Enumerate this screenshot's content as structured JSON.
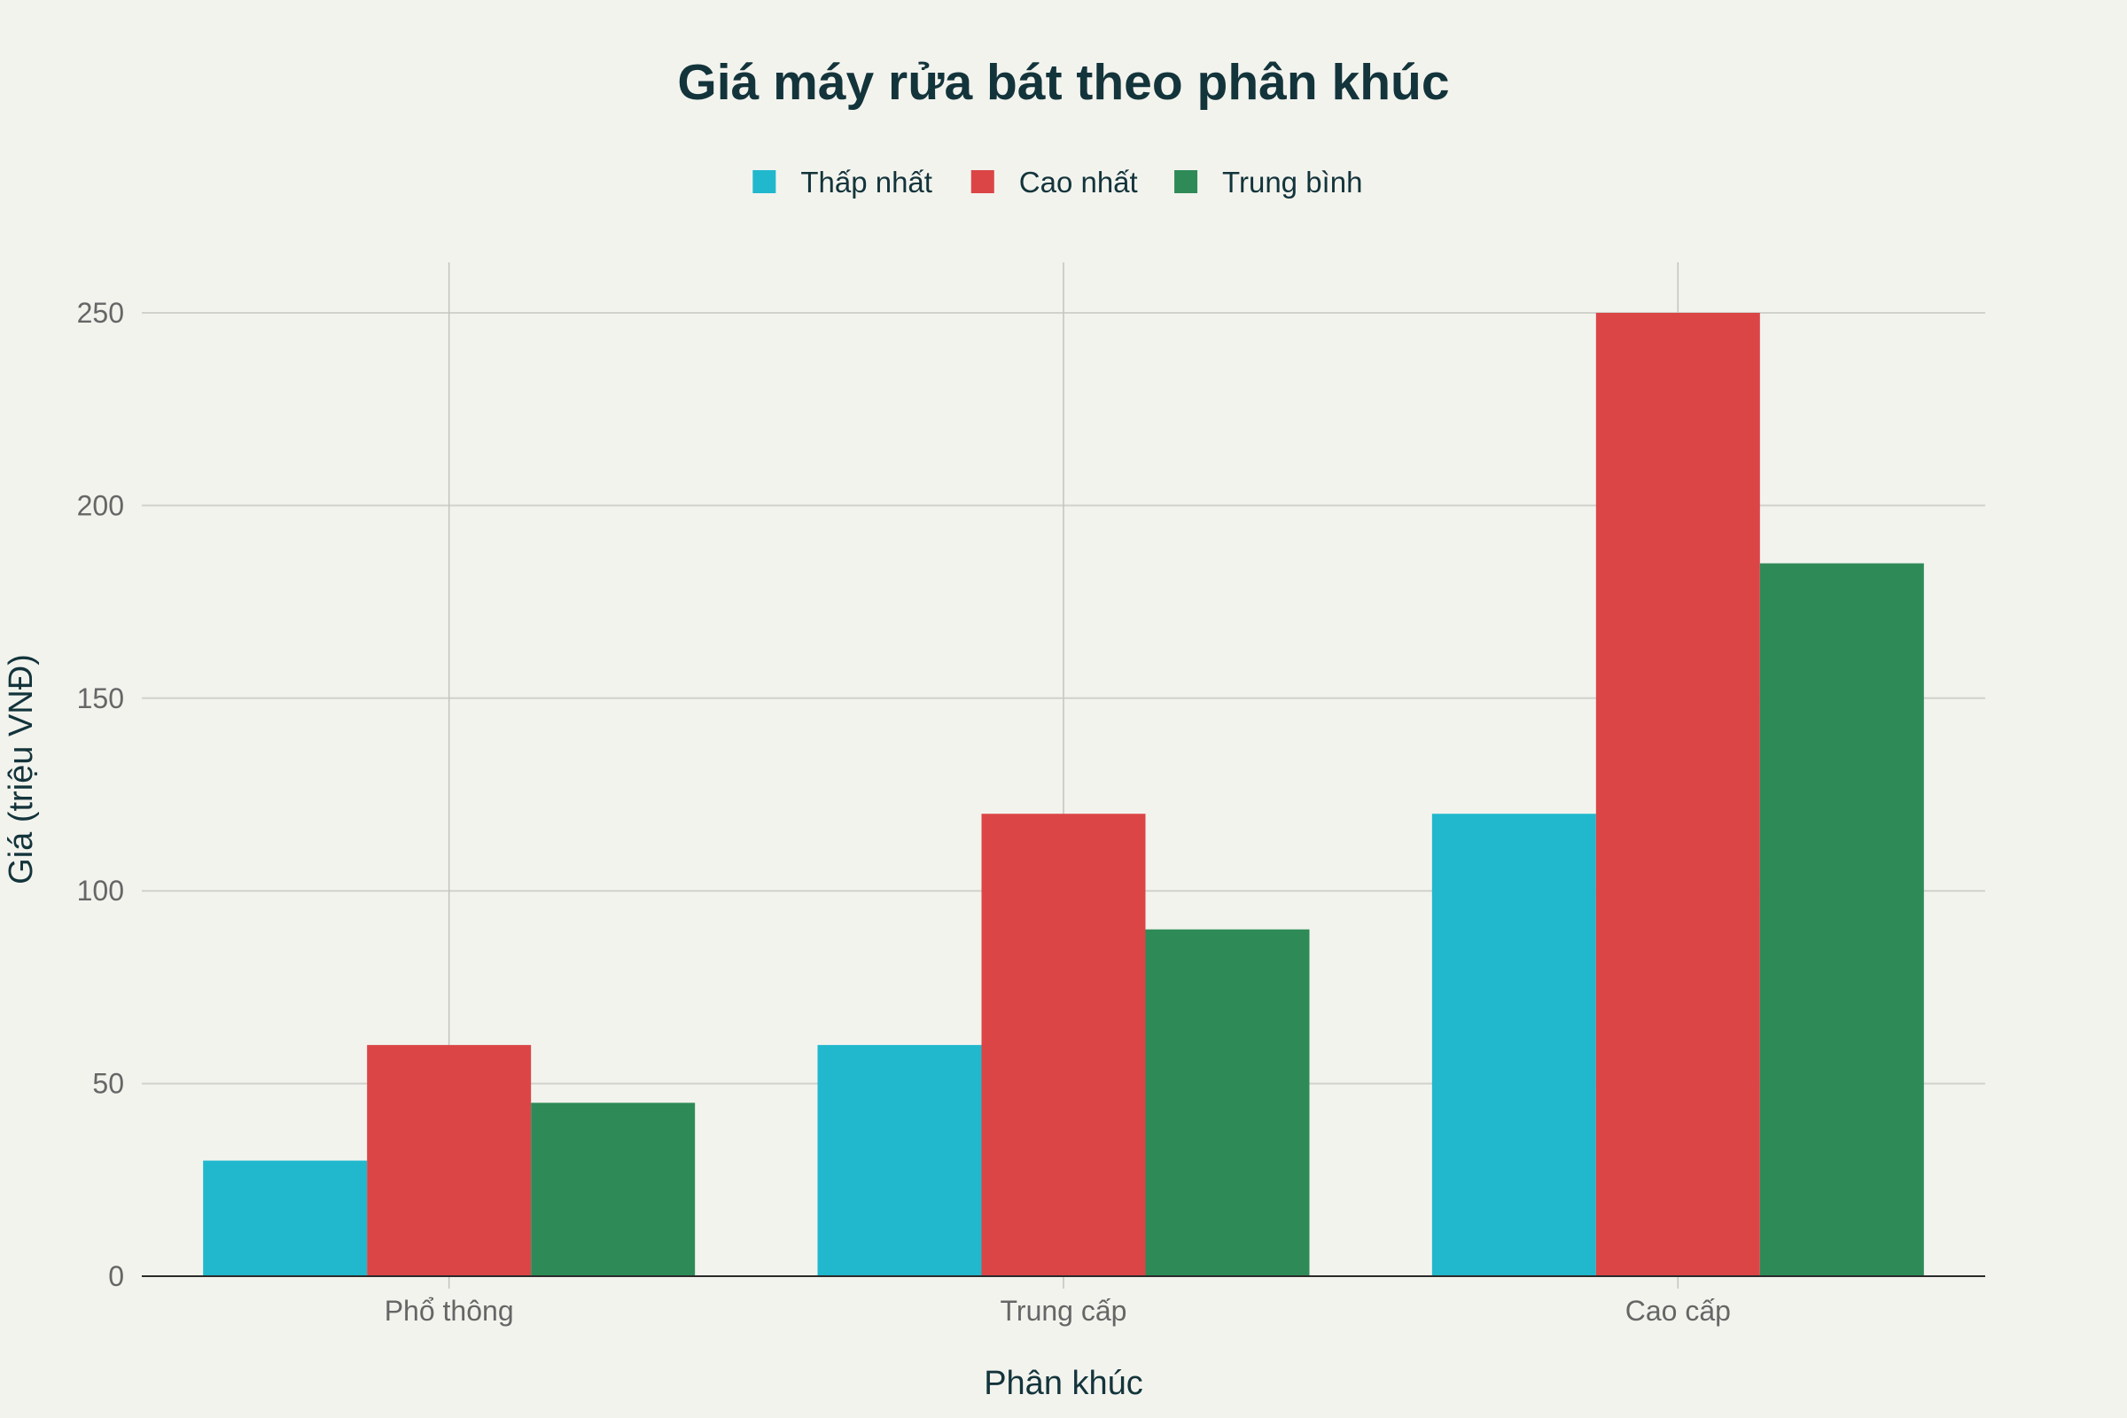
{
  "chart_data": {
    "type": "bar",
    "title": "Giá máy rửa bát theo phân khúc",
    "xlabel": "Phân khúc",
    "ylabel": "Giá (triệu VNĐ)",
    "categories": [
      "Phổ thông",
      "Trung cấp",
      "Cao cấp"
    ],
    "series": [
      {
        "name": "Thấp nhất",
        "color": "#21b8cd",
        "values": [
          30,
          60,
          120
        ]
      },
      {
        "name": "Cao nhất",
        "color": "#db4546",
        "values": [
          60,
          120,
          250
        ]
      },
      {
        "name": "Trung bình",
        "color": "#2e8b57",
        "values": [
          45,
          90,
          185
        ]
      }
    ],
    "ylim": [
      0,
      262
    ],
    "yticks": [
      0,
      50,
      100,
      150,
      200,
      250
    ],
    "grid": true,
    "legend_position": "top-center"
  }
}
